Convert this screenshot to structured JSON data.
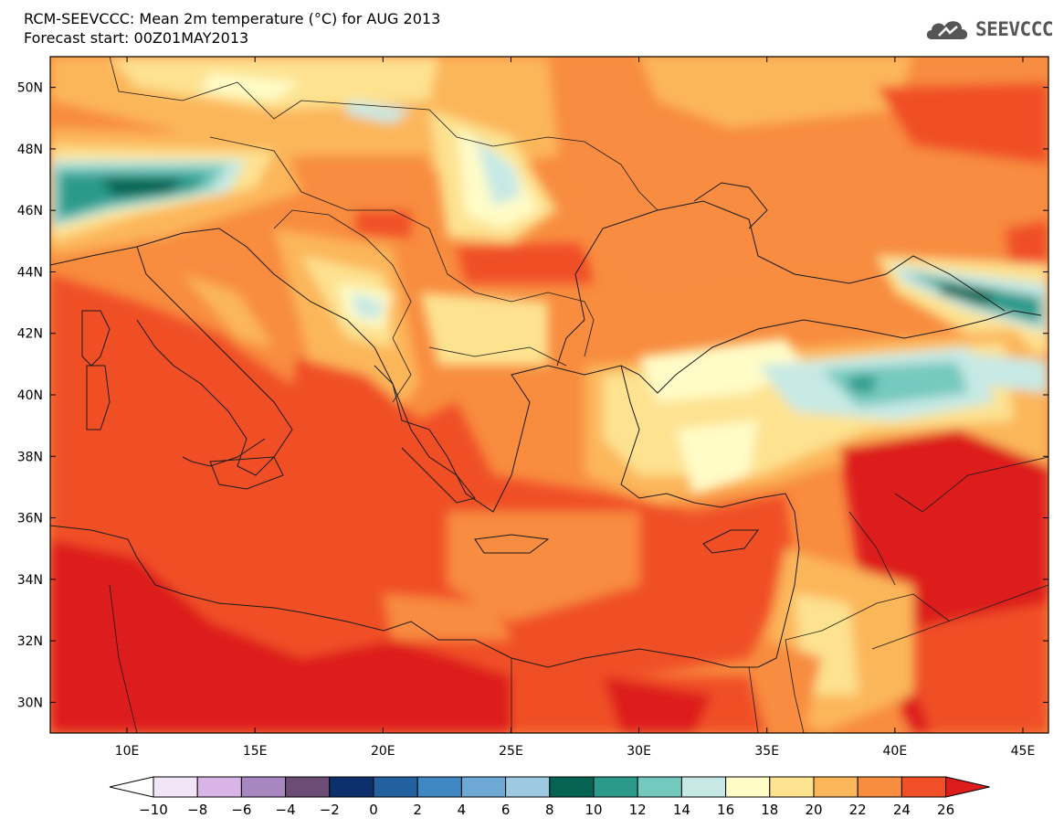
{
  "title": {
    "line1": "RCM-SEEVCCC: Mean 2m temperature (°C) for AUG 2013",
    "line2": "Forecast start: 00Z01MAY2013"
  },
  "logo": {
    "text": "SEEVCCC",
    "icon": "cloud-icon"
  },
  "map": {
    "lon_range": [
      7,
      46
    ],
    "lat_range": [
      29,
      51
    ],
    "lat_ticks": [
      {
        "value": 50,
        "label": "50N"
      },
      {
        "value": 48,
        "label": "48N"
      },
      {
        "value": 46,
        "label": "46N"
      },
      {
        "value": 44,
        "label": "44N"
      },
      {
        "value": 42,
        "label": "42N"
      },
      {
        "value": 40,
        "label": "40N"
      },
      {
        "value": 38,
        "label": "38N"
      },
      {
        "value": 36,
        "label": "36N"
      },
      {
        "value": 34,
        "label": "34N"
      },
      {
        "value": 32,
        "label": "32N"
      },
      {
        "value": 30,
        "label": "30N"
      }
    ],
    "lon_ticks": [
      {
        "value": 10,
        "label": "10E"
      },
      {
        "value": 15,
        "label": "15E"
      },
      {
        "value": 20,
        "label": "20E"
      },
      {
        "value": 25,
        "label": "25E"
      },
      {
        "value": 30,
        "label": "30E"
      },
      {
        "value": 35,
        "label": "35E"
      },
      {
        "value": 40,
        "label": "40E"
      },
      {
        "value": 45,
        "label": "45E"
      }
    ]
  },
  "colorbar": {
    "labels": [
      "−10",
      "−8",
      "−6",
      "−4",
      "−2",
      "0",
      "2",
      "4",
      "6",
      "8",
      "10",
      "12",
      "14",
      "16",
      "18",
      "20",
      "22",
      "24",
      "26"
    ],
    "under_color": "#ffffff",
    "over_color": "#dd1c1c",
    "colors": [
      "#f1e5f7",
      "#d8b5e6",
      "#a886bf",
      "#6c4c75",
      "#0d2f6b",
      "#23609f",
      "#3f88c4",
      "#6ea9d5",
      "#9ecae1",
      "#046451",
      "#2c9a8a",
      "#74c9be",
      "#c7e9e5",
      "#fffcc7",
      "#fde290",
      "#fcb65a",
      "#f88c3f",
      "#f04f28"
    ]
  }
}
